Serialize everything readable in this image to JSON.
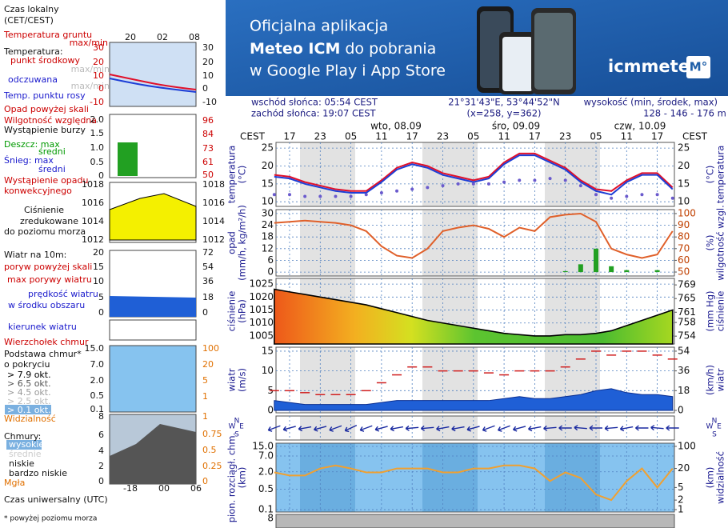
{
  "banner": {
    "line1": "Oficjalna aplikacja",
    "line2_bold": "Meteo ICM",
    "line2_rest": "do pobrania",
    "line3": "w Google Play i App Store",
    "logo": "icmmeteo",
    "badge": "M°"
  },
  "header": {
    "sunrise": "wschód słońca: 05:54 CEST",
    "sunset": "zachód słońca: 19:07 CEST",
    "coords": "21°31'43\"E, 53°44'52\"N",
    "grid": "(x=258,  y=362)",
    "elev_label": "wysokość (min, środek, max)",
    "elev": "128 - 146 - 176 m",
    "zone": "CEST",
    "days": [
      "wto, 08.09",
      "śro, 09.09",
      "czw, 10.09"
    ]
  },
  "chart_data": [
    {
      "type": "line",
      "ylabel": "temperatura",
      "yunit": "(°C)",
      "categories": [
        null,
        "17",
        null,
        "23",
        null,
        "05",
        null,
        "11",
        null,
        "17",
        null,
        "23",
        null,
        "05",
        null,
        "11",
        null,
        "17",
        null,
        "23",
        null,
        "05",
        null,
        "11",
        null,
        "17",
        null
      ],
      "ylim": [
        8.7,
        26.6
      ],
      "yticks": [
        10,
        15,
        20,
        25
      ],
      "grid": true,
      "series": [
        {
          "name": "punkt środkowy",
          "style": "line",
          "color": "#e0102a",
          "values": [
            17.5,
            17,
            15.5,
            14.5,
            13.5,
            13,
            13,
            16,
            19.5,
            21,
            20,
            18,
            17,
            16,
            17,
            21,
            23.5,
            23.5,
            21.5,
            19.5,
            16,
            13.5,
            13,
            16,
            18,
            18,
            14
          ]
        },
        {
          "name": "odczuwana",
          "style": "line",
          "color": "#1d3ed6",
          "values": [
            17,
            16.5,
            15,
            14,
            13,
            12.5,
            12.5,
            15.5,
            19,
            20.5,
            19.5,
            17.5,
            16.5,
            15.5,
            16.5,
            20.5,
            23,
            23,
            21,
            19,
            15.5,
            13,
            12,
            15.5,
            17.5,
            17.5,
            13.5
          ]
        },
        {
          "name": "Temp. punktu rosy",
          "style": "dots",
          "color": "#6a5acd",
          "values": [
            12,
            12,
            11.5,
            11.5,
            11.5,
            11.5,
            12,
            12.5,
            13,
            13.5,
            14,
            14.5,
            15,
            15,
            15,
            15.5,
            16,
            16,
            16.5,
            16,
            14.5,
            12,
            11,
            11.5,
            12,
            12,
            11
          ]
        }
      ]
    },
    {
      "type": "combo",
      "ylabel": "opad",
      "yunit": "(mm/h, kg/m²/h)",
      "y2label": "wilgotność wzgl.",
      "y2unit": "(%)",
      "categories": [
        null,
        "17",
        null,
        "23",
        null,
        "05",
        null,
        "11",
        null,
        "17",
        null,
        "23",
        null,
        "05",
        null,
        "11",
        null,
        "17",
        null,
        "23",
        null,
        "05",
        null,
        "11",
        null,
        "17",
        null
      ],
      "ylim": [
        -2,
        32
      ],
      "yticks": [
        0,
        6,
        12,
        18,
        24,
        30
      ],
      "y2lim": [
        46.6,
        103.4
      ],
      "y2ticks": [
        50,
        60,
        70,
        80,
        90,
        100
      ],
      "grid": true,
      "series": [
        {
          "name": "Deszcz: max",
          "style": "bar",
          "color": "#22a022",
          "values": [
            0,
            0,
            0,
            0,
            0,
            0,
            0,
            0,
            0,
            0,
            0,
            0,
            0,
            0,
            0,
            0,
            0,
            0,
            0,
            0.5,
            4,
            12,
            3,
            1,
            0,
            1,
            0
          ]
        },
        {
          "name": "Wilgotność względna",
          "style": "line",
          "axis": "y2",
          "color": "#e0602a",
          "values": [
            92,
            93,
            94,
            93,
            92,
            90,
            85,
            72,
            64,
            62,
            70,
            85,
            88,
            90,
            87,
            80,
            88,
            85,
            97,
            99,
            100,
            93,
            70,
            65,
            62,
            65,
            85
          ]
        }
      ]
    },
    {
      "type": "area",
      "ylabel": "ciśnienie",
      "yunit": "(hPa)",
      "y2unit": "(mm Hg)",
      "categories": [
        null,
        "17",
        null,
        "23",
        null,
        "05",
        null,
        "11",
        null,
        "17",
        null,
        "23",
        null,
        "05",
        null,
        "11",
        null,
        "17",
        null,
        "23",
        null,
        "05",
        null,
        "11",
        null,
        "17",
        null
      ],
      "ylim": [
        1001.9,
        1027.2
      ],
      "yticks": [
        1005,
        1010,
        1015,
        1020,
        1025
      ],
      "y2lim": [
        751.7,
        770.9
      ],
      "y2ticks": [
        754,
        758,
        761,
        765,
        769
      ],
      "grid": true,
      "series": [
        {
          "name": "Ciśnienie",
          "style": "area",
          "color": "#000000",
          "values": [
            1023,
            1022,
            1021,
            1020,
            1019,
            1018,
            1017,
            1015.5,
            1014,
            1012.5,
            1011,
            1010,
            1009,
            1008,
            1007,
            1006,
            1005.5,
            1005,
            1005,
            1005.5,
            1005.5,
            1006,
            1007,
            1009,
            1011,
            1013,
            1015
          ]
        }
      ]
    },
    {
      "type": "combo",
      "ylabel": "wiatr",
      "yunit": "(m/s)",
      "y2unit": "(km/h)",
      "categories": [
        null,
        "17",
        null,
        "23",
        null,
        "05",
        null,
        "11",
        null,
        "17",
        null,
        "23",
        null,
        "05",
        null,
        "11",
        null,
        "17",
        null,
        "23",
        null,
        "05",
        null,
        "11",
        null,
        "17",
        null
      ],
      "ylim": [
        -0.6,
        16
      ],
      "yticks": [
        0,
        5,
        10,
        15
      ],
      "y2lim": [
        -2.2,
        57.6
      ],
      "y2ticks": [
        0,
        18,
        36,
        54
      ],
      "grid": true,
      "series": [
        {
          "name": "prędkość wiatru",
          "style": "area",
          "color": "#1f5fd6",
          "values": [
            2.5,
            2,
            1.5,
            1.5,
            1.5,
            1.5,
            1.5,
            2,
            2.5,
            2.5,
            2.5,
            2.5,
            2.5,
            2.5,
            2.5,
            3,
            3.5,
            3,
            3,
            3.5,
            4,
            5,
            5.5,
            4.5,
            4,
            4,
            3.5
          ]
        },
        {
          "name": "max porywy wiatru",
          "style": "dashes",
          "color": "#d02020",
          "values": [
            5,
            5,
            4.5,
            4,
            4,
            4,
            5,
            7,
            9,
            11,
            11,
            10,
            10,
            10,
            9.5,
            9,
            10,
            10,
            10,
            11,
            13,
            15,
            14,
            15,
            15,
            14,
            13
          ]
        }
      ]
    },
    {
      "type": "arrows",
      "compass": [
        "N",
        "E",
        "S",
        "W"
      ],
      "color": "#1a2aa0",
      "categories": [
        null,
        "17",
        null,
        "23",
        null,
        "05",
        null,
        "11",
        null,
        "17",
        null,
        "23",
        null,
        "05",
        null,
        "11",
        null,
        "17",
        null,
        "23",
        null,
        "05",
        null,
        "11",
        null,
        "17",
        null
      ],
      "values": [
        250,
        255,
        260,
        255,
        250,
        245,
        250,
        255,
        260,
        265,
        265,
        260,
        260,
        255,
        250,
        250,
        255,
        260,
        265,
        270,
        275,
        270,
        265,
        260,
        270,
        275,
        270
      ]
    },
    {
      "type": "line",
      "ylabel": "pion. rozciągł. chm.",
      "yunit": "(km)",
      "y2label": "widzialność",
      "y2unit": "(km)",
      "log": true,
      "categories": [
        null,
        "17",
        null,
        "23",
        null,
        "05",
        null,
        "11",
        null,
        "17",
        null,
        "23",
        null,
        "05",
        null,
        "11",
        null,
        "17",
        null,
        "23",
        null,
        "05",
        null,
        "11",
        null,
        "17",
        null
      ],
      "ylim": [
        0.083,
        19.3
      ],
      "yticks": [
        {
          "value": 15,
          "label": "15.0"
        },
        {
          "value": 7,
          "label": "7.0"
        },
        {
          "value": 2,
          "label": "2.0"
        },
        0.5,
        0.1
      ],
      "y2lim": [
        0.84,
        126
      ],
      "y2ticks": [
        1,
        2,
        5,
        20,
        100
      ],
      "grid": true,
      "series": [
        {
          "name": "Widzialność",
          "style": "line",
          "axis": "y2",
          "color": "#f0a030",
          "values": [
            15,
            12,
            12,
            20,
            25,
            20,
            15,
            15,
            20,
            20,
            20,
            15,
            15,
            20,
            20,
            25,
            25,
            20,
            8,
            15,
            10,
            3,
            2,
            8,
            20,
            5,
            20
          ]
        }
      ]
    }
  ],
  "bottom_panel": {
    "ytick": 8
  },
  "legend": {
    "local_time": "Czas lokalny",
    "local_zone": "(CET/CEST)",
    "local_hours": [
      "20",
      "02",
      "08"
    ],
    "ground_temp": "Temperatura gruntu",
    "ground_maxmin": "max/min",
    "temperature": "Temperatura:",
    "temp_maxmin": "max/min",
    "feels_maxmin": "max/min",
    "temp_ticks": [
      "30",
      "20",
      "10",
      "0",
      "-10"
    ],
    "precip_over": "Opad powyżej skali",
    "storm": "Wystąpienie burzy",
    "rain_mean": "średni",
    "snow": "Śnieg: max",
    "snow_mean": "średni",
    "convective": "Wystąpienie opadu",
    "convective2": "konwekcyjnego",
    "precip_ticks": [
      "2.0",
      "1.5",
      "1.0",
      "0.5",
      "0"
    ],
    "humidity_ticks": [
      "96",
      "84",
      "73",
      "61",
      "50"
    ],
    "pressure_ticks": [
      "1018",
      "1016",
      "1014",
      "1012"
    ],
    "pressure2": "zredukowane",
    "pressure3": "do poziomu morza",
    "wind": "Wiatr na 10m:",
    "wind_ticks": [
      "20",
      "15",
      "10",
      "5",
      "0"
    ],
    "wind_kmh_ticks": [
      "72",
      "54",
      "36",
      "18",
      "0"
    ],
    "gust_over": "poryw powyżej skali",
    "wind_speed2": "w środku obszaru",
    "wind_dir": "kierunek wiatru",
    "cloud_top": "Wierzchołek chmur",
    "cloud_base": "Podstawa chmur*",
    "cloud_base2": "o pokryciu",
    "okt": [
      "> 7.9 okt.",
      "> 6.5 okt.",
      "> 4.5 okt.",
      "> 2.5 okt.",
      "> 0.1 okt."
    ],
    "cloud_ticks": [
      "15.0",
      "7.0",
      "2.0",
      "0.5",
      "0.1"
    ],
    "vis_ticks": [
      "100",
      "20",
      "5",
      "1"
    ],
    "clouds": "Chmury:",
    "cl_high": "wysokie",
    "cl_mid": "średnie",
    "cl_low": "niskie",
    "cl_vlow": "bardzo niskie",
    "fog": "Mgła",
    "cover_ticks": [
      "8",
      "6",
      "4",
      "2",
      "0"
    ],
    "fog_ticks": [
      "1",
      "0.75",
      "0.5",
      "0.25",
      "0"
    ],
    "utc_hours": [
      "-18",
      "00",
      "06"
    ],
    "utc": "Czas uniwersalny (UTC)",
    "footnote": "* powyżej poziomu morza"
  }
}
